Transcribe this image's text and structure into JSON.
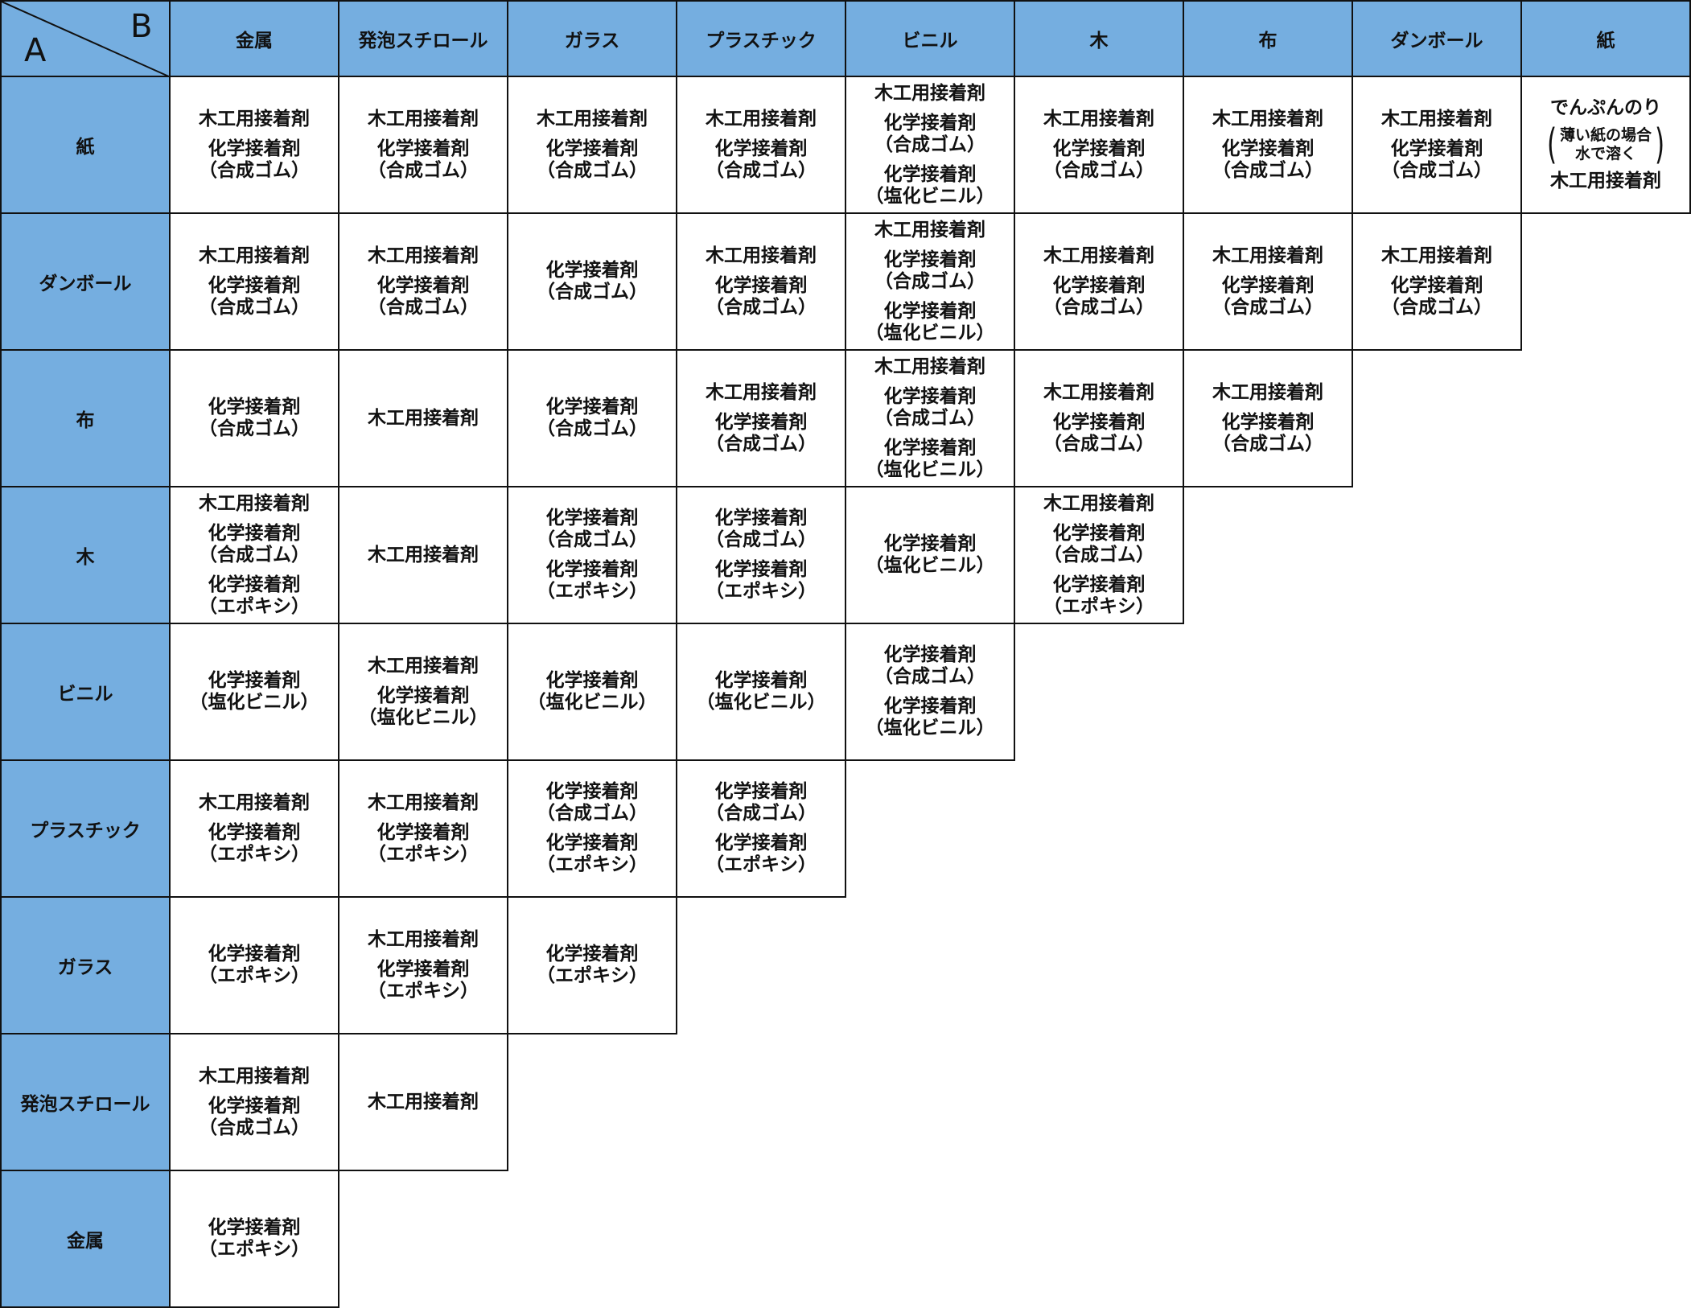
{
  "corner": {
    "row_axis": "A",
    "col_axis": "B"
  },
  "header_color": "#75aee0",
  "columns": [
    "金属",
    "発泡スチロール",
    "ガラス",
    "プラスチック",
    "ビニル",
    "木",
    "布",
    "ダンボール",
    "紙"
  ],
  "rows": [
    {
      "label": "紙",
      "cells": [
        [
          [
            "木工用接着剤"
          ],
          [
            "化学接着剤",
            "（合成ゴム）"
          ]
        ],
        [
          [
            "木工用接着剤"
          ],
          [
            "化学接着剤",
            "（合成ゴム）"
          ]
        ],
        [
          [
            "木工用接着剤"
          ],
          [
            "化学接着剤",
            "（合成ゴム）"
          ]
        ],
        [
          [
            "木工用接着剤"
          ],
          [
            "化学接着剤",
            "（合成ゴム）"
          ]
        ],
        [
          [
            "木工用接着剤"
          ],
          [
            "化学接着剤",
            "（合成ゴム）"
          ],
          [
            "化学接着剤",
            "（塩化ビニル）"
          ]
        ],
        [
          [
            "木工用接着剤"
          ],
          [
            "化学接着剤",
            "（合成ゴム）"
          ]
        ],
        [
          [
            "木工用接着剤"
          ],
          [
            "化学接着剤",
            "（合成ゴム）"
          ]
        ],
        [
          [
            "木工用接着剤"
          ],
          [
            "化学接着剤",
            "（合成ゴム）"
          ]
        ],
        [
          [
            "でんぷんのり"
          ],
          {
            "note": [
              "薄い紙の場合",
              "水で溶く"
            ]
          },
          [
            "木工用接着剤"
          ]
        ]
      ]
    },
    {
      "label": "ダンボール",
      "cells": [
        [
          [
            "木工用接着剤"
          ],
          [
            "化学接着剤",
            "（合成ゴム）"
          ]
        ],
        [
          [
            "木工用接着剤"
          ],
          [
            "化学接着剤",
            "（合成ゴム）"
          ]
        ],
        [
          [
            "化学接着剤",
            "（合成ゴム）"
          ]
        ],
        [
          [
            "木工用接着剤"
          ],
          [
            "化学接着剤",
            "（合成ゴム）"
          ]
        ],
        [
          [
            "木工用接着剤"
          ],
          [
            "化学接着剤",
            "（合成ゴム）"
          ],
          [
            "化学接着剤",
            "（塩化ビニル）"
          ]
        ],
        [
          [
            "木工用接着剤"
          ],
          [
            "化学接着剤",
            "（合成ゴム）"
          ]
        ],
        [
          [
            "木工用接着剤"
          ],
          [
            "化学接着剤",
            "（合成ゴム）"
          ]
        ],
        [
          [
            "木工用接着剤"
          ],
          [
            "化学接着剤",
            "（合成ゴム）"
          ]
        ]
      ]
    },
    {
      "label": "布",
      "cells": [
        [
          [
            "化学接着剤",
            "（合成ゴム）"
          ]
        ],
        [
          [
            "木工用接着剤"
          ]
        ],
        [
          [
            "化学接着剤",
            "（合成ゴム）"
          ]
        ],
        [
          [
            "木工用接着剤"
          ],
          [
            "化学接着剤",
            "（合成ゴム）"
          ]
        ],
        [
          [
            "木工用接着剤"
          ],
          [
            "化学接着剤",
            "（合成ゴム）"
          ],
          [
            "化学接着剤",
            "（塩化ビニル）"
          ]
        ],
        [
          [
            "木工用接着剤"
          ],
          [
            "化学接着剤",
            "（合成ゴム）"
          ]
        ],
        [
          [
            "木工用接着剤"
          ],
          [
            "化学接着剤",
            "（合成ゴム）"
          ]
        ]
      ]
    },
    {
      "label": "木",
      "cells": [
        [
          [
            "木工用接着剤"
          ],
          [
            "化学接着剤",
            "（合成ゴム）"
          ],
          [
            "化学接着剤",
            "（エポキシ）"
          ]
        ],
        [
          [
            "木工用接着剤"
          ]
        ],
        [
          [
            "化学接着剤",
            "（合成ゴム）"
          ],
          [
            "化学接着剤",
            "（エポキシ）"
          ]
        ],
        [
          [
            "化学接着剤",
            "（合成ゴム）"
          ],
          [
            "化学接着剤",
            "（エポキシ）"
          ]
        ],
        [
          [
            "化学接着剤",
            "（塩化ビニル）"
          ]
        ],
        [
          [
            "木工用接着剤"
          ],
          [
            "化学接着剤",
            "（合成ゴム）"
          ],
          [
            "化学接着剤",
            "（エポキシ）"
          ]
        ]
      ]
    },
    {
      "label": "ビニル",
      "cells": [
        [
          [
            "化学接着剤",
            "（塩化ビニル）"
          ]
        ],
        [
          [
            "木工用接着剤"
          ],
          [
            "化学接着剤",
            "（塩化ビニル）"
          ]
        ],
        [
          [
            "化学接着剤",
            "（塩化ビニル）"
          ]
        ],
        [
          [
            "化学接着剤",
            "（塩化ビニル）"
          ]
        ],
        [
          [
            "化学接着剤",
            "（合成ゴム）"
          ],
          [
            "化学接着剤",
            "（塩化ビニル）"
          ]
        ]
      ]
    },
    {
      "label": "プラスチック",
      "cells": [
        [
          [
            "木工用接着剤"
          ],
          [
            "化学接着剤",
            "（エポキシ）"
          ]
        ],
        [
          [
            "木工用接着剤"
          ],
          [
            "化学接着剤",
            "（エポキシ）"
          ]
        ],
        [
          [
            "化学接着剤",
            "（合成ゴム）"
          ],
          [
            "化学接着剤",
            "（エポキシ）"
          ]
        ],
        [
          [
            "化学接着剤",
            "（合成ゴム）"
          ],
          [
            "化学接着剤",
            "（エポキシ）"
          ]
        ]
      ]
    },
    {
      "label": "ガラス",
      "cells": [
        [
          [
            "化学接着剤",
            "（エポキシ）"
          ]
        ],
        [
          [
            "木工用接着剤"
          ],
          [
            "化学接着剤",
            "（エポキシ）"
          ]
        ],
        [
          [
            "化学接着剤",
            "（エポキシ）"
          ]
        ]
      ]
    },
    {
      "label": "発泡スチロール",
      "cells": [
        [
          [
            "木工用接着剤"
          ],
          [
            "化学接着剤",
            "（合成ゴム）"
          ]
        ],
        [
          [
            "木工用接着剤"
          ]
        ]
      ]
    },
    {
      "label": "金属",
      "cells": [
        [
          [
            "化学接着剤",
            "（エポキシ）"
          ]
        ]
      ]
    }
  ]
}
